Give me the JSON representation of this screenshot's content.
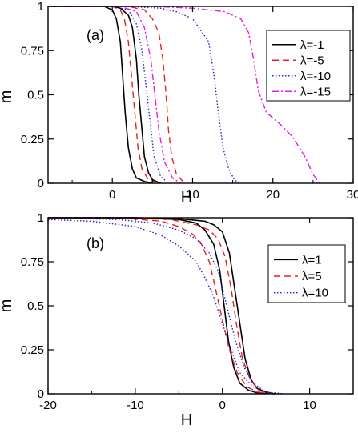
{
  "chart_data": [
    {
      "type": "line",
      "panel_label": "(a)",
      "xlabel": "H",
      "ylabel": "m",
      "xlim": [
        -8,
        30
      ],
      "ylim": [
        0,
        1
      ],
      "xticks": [
        0,
        10,
        20,
        30
      ],
      "xtick_labels": [
        "0",
        "10",
        "20",
        "30"
      ],
      "yticks": [
        0,
        0.25,
        0.5,
        0.75,
        1
      ],
      "ytick_labels": [
        "0",
        "0.25",
        "0.5",
        "0.75",
        "1"
      ],
      "legend_position": "top-right",
      "series": [
        {
          "name": "λ=-1",
          "color": "#000000",
          "style": "solid",
          "branches": [
            {
              "x": [
                -8,
                -1,
                0,
                0.5,
                1,
                1.3,
                1.6,
                2,
                2.5,
                3,
                4,
                5
              ],
              "y": [
                1,
                1,
                0.98,
                0.93,
                0.8,
                0.6,
                0.4,
                0.2,
                0.08,
                0.03,
                0.01,
                0
              ]
            },
            {
              "x": [
                -8,
                0,
                1,
                2,
                2.5,
                3,
                3.3,
                3.7,
                4,
                4.5,
                5,
                6
              ],
              "y": [
                1,
                1,
                0.99,
                0.95,
                0.88,
                0.7,
                0.5,
                0.3,
                0.15,
                0.06,
                0.02,
                0
              ]
            }
          ]
        },
        {
          "name": "λ=-5",
          "color": "#e8201c",
          "style": "dashed",
          "branches": [
            {
              "x": [
                -8,
                0,
                1,
                1.5,
                2,
                2.4,
                2.8,
                3.2,
                3.7,
                4.5,
                6
              ],
              "y": [
                1,
                1,
                0.98,
                0.93,
                0.8,
                0.6,
                0.4,
                0.2,
                0.08,
                0.02,
                0
              ]
            },
            {
              "x": [
                -8,
                2,
                4,
                5,
                5.8,
                6.3,
                6.7,
                7,
                7.4,
                8,
                9
              ],
              "y": [
                1,
                1,
                0.98,
                0.93,
                0.85,
                0.7,
                0.5,
                0.3,
                0.15,
                0.05,
                0
              ]
            }
          ]
        },
        {
          "name": "λ=-10",
          "color": "#2020c8",
          "style": "dotted",
          "branches": [
            {
              "x": [
                -8,
                0,
                2,
                3,
                3.7,
                4.2,
                4.7,
                5.2,
                6,
                7
              ],
              "y": [
                1,
                1,
                0.98,
                0.9,
                0.75,
                0.55,
                0.35,
                0.15,
                0.04,
                0
              ]
            },
            {
              "x": [
                -8,
                2,
                6,
                8,
                10,
                12,
                12.7,
                13.2,
                13.8,
                14.5,
                15.2,
                15.8
              ],
              "y": [
                1,
                1,
                0.99,
                0.97,
                0.93,
                0.8,
                0.6,
                0.4,
                0.2,
                0.08,
                0.02,
                0
              ]
            }
          ]
        },
        {
          "name": "λ=-15",
          "color": "#e020e0",
          "style": "dashdot",
          "branches": [
            {
              "x": [
                -8,
                1,
                3,
                4,
                4.8,
                5.3,
                5.8,
                6.5,
                7.5,
                8.5
              ],
              "y": [
                1,
                1,
                0.97,
                0.88,
                0.7,
                0.5,
                0.3,
                0.12,
                0.03,
                0
              ]
            },
            {
              "x": [
                -8,
                5,
                10,
                14,
                16,
                17,
                17.6,
                18.2,
                19.2,
                21,
                22.5,
                24,
                25,
                25.8
              ],
              "y": [
                1,
                1,
                0.99,
                0.97,
                0.93,
                0.85,
                0.7,
                0.52,
                0.4,
                0.33,
                0.26,
                0.15,
                0.05,
                0
              ]
            }
          ]
        }
      ]
    },
    {
      "type": "line",
      "panel_label": "(b)",
      "xlabel": "H",
      "ylabel": "m",
      "xlim": [
        -20,
        15
      ],
      "ylim": [
        0,
        1
      ],
      "xticks": [
        -20,
        -10,
        0,
        10
      ],
      "xtick_labels": [
        "-20",
        "-10",
        "0",
        "10"
      ],
      "yticks": [
        0,
        0.25,
        0.5,
        0.75,
        1
      ],
      "ytick_labels": [
        "0",
        "0.25",
        "0.5",
        "0.75",
        "1"
      ],
      "legend_position": "top-right",
      "series": [
        {
          "name": "λ=1",
          "color": "#000000",
          "style": "solid",
          "branches": [
            {
              "x": [
                -20,
                -10,
                -5,
                -3,
                -2,
                -1,
                -0.3,
                0.2,
                0.7,
                1.3,
                2,
                3,
                4,
                6
              ],
              "y": [
                1,
                1,
                0.99,
                0.97,
                0.93,
                0.85,
                0.7,
                0.5,
                0.3,
                0.15,
                0.06,
                0.02,
                0.005,
                0
              ]
            },
            {
              "x": [
                -20,
                -10,
                -5,
                -2,
                -1,
                0,
                0.8,
                1.4,
                2,
                2.6,
                3.3,
                4,
                5,
                6
              ],
              "y": [
                1,
                1,
                0.995,
                0.98,
                0.96,
                0.92,
                0.8,
                0.6,
                0.4,
                0.2,
                0.08,
                0.03,
                0.01,
                0
              ]
            }
          ]
        },
        {
          "name": "λ=5",
          "color": "#e8201c",
          "style": "dashed",
          "branches": [
            {
              "x": [
                -20,
                -12,
                -7,
                -5,
                -3.5,
                -2.5,
                -1.5,
                -0.8,
                0,
                0.8,
                1.7,
                2.8,
                4,
                6
              ],
              "y": [
                1,
                1,
                0.98,
                0.95,
                0.91,
                0.86,
                0.75,
                0.6,
                0.42,
                0.25,
                0.12,
                0.04,
                0.01,
                0
              ]
            },
            {
              "x": [
                -20,
                -12,
                -6,
                -3,
                -1.5,
                -0.5,
                0.3,
                1,
                1.6,
                2.3,
                3.2,
                4.2,
                5.5
              ],
              "y": [
                1,
                1,
                0.99,
                0.96,
                0.93,
                0.88,
                0.78,
                0.6,
                0.4,
                0.2,
                0.08,
                0.02,
                0
              ]
            }
          ]
        },
        {
          "name": "λ=10",
          "color": "#2020c8",
          "style": "dotted",
          "branches": [
            {
              "x": [
                -20,
                -15,
                -10,
                -7,
                -5,
                -3,
                -2,
                -1,
                0,
                1,
                2,
                3.5,
                5,
                7
              ],
              "y": [
                0.99,
                0.98,
                0.95,
                0.9,
                0.84,
                0.75,
                0.66,
                0.55,
                0.4,
                0.25,
                0.12,
                0.04,
                0.01,
                0
              ]
            },
            {
              "x": [
                -20,
                -12,
                -8,
                -5,
                -3,
                -1.5,
                -0.5,
                0.5,
                1.5,
                2.5,
                3.5,
                5,
                7
              ],
              "y": [
                1,
                0.99,
                0.97,
                0.93,
                0.88,
                0.8,
                0.7,
                0.5,
                0.3,
                0.15,
                0.06,
                0.01,
                0
              ]
            }
          ]
        }
      ]
    }
  ]
}
